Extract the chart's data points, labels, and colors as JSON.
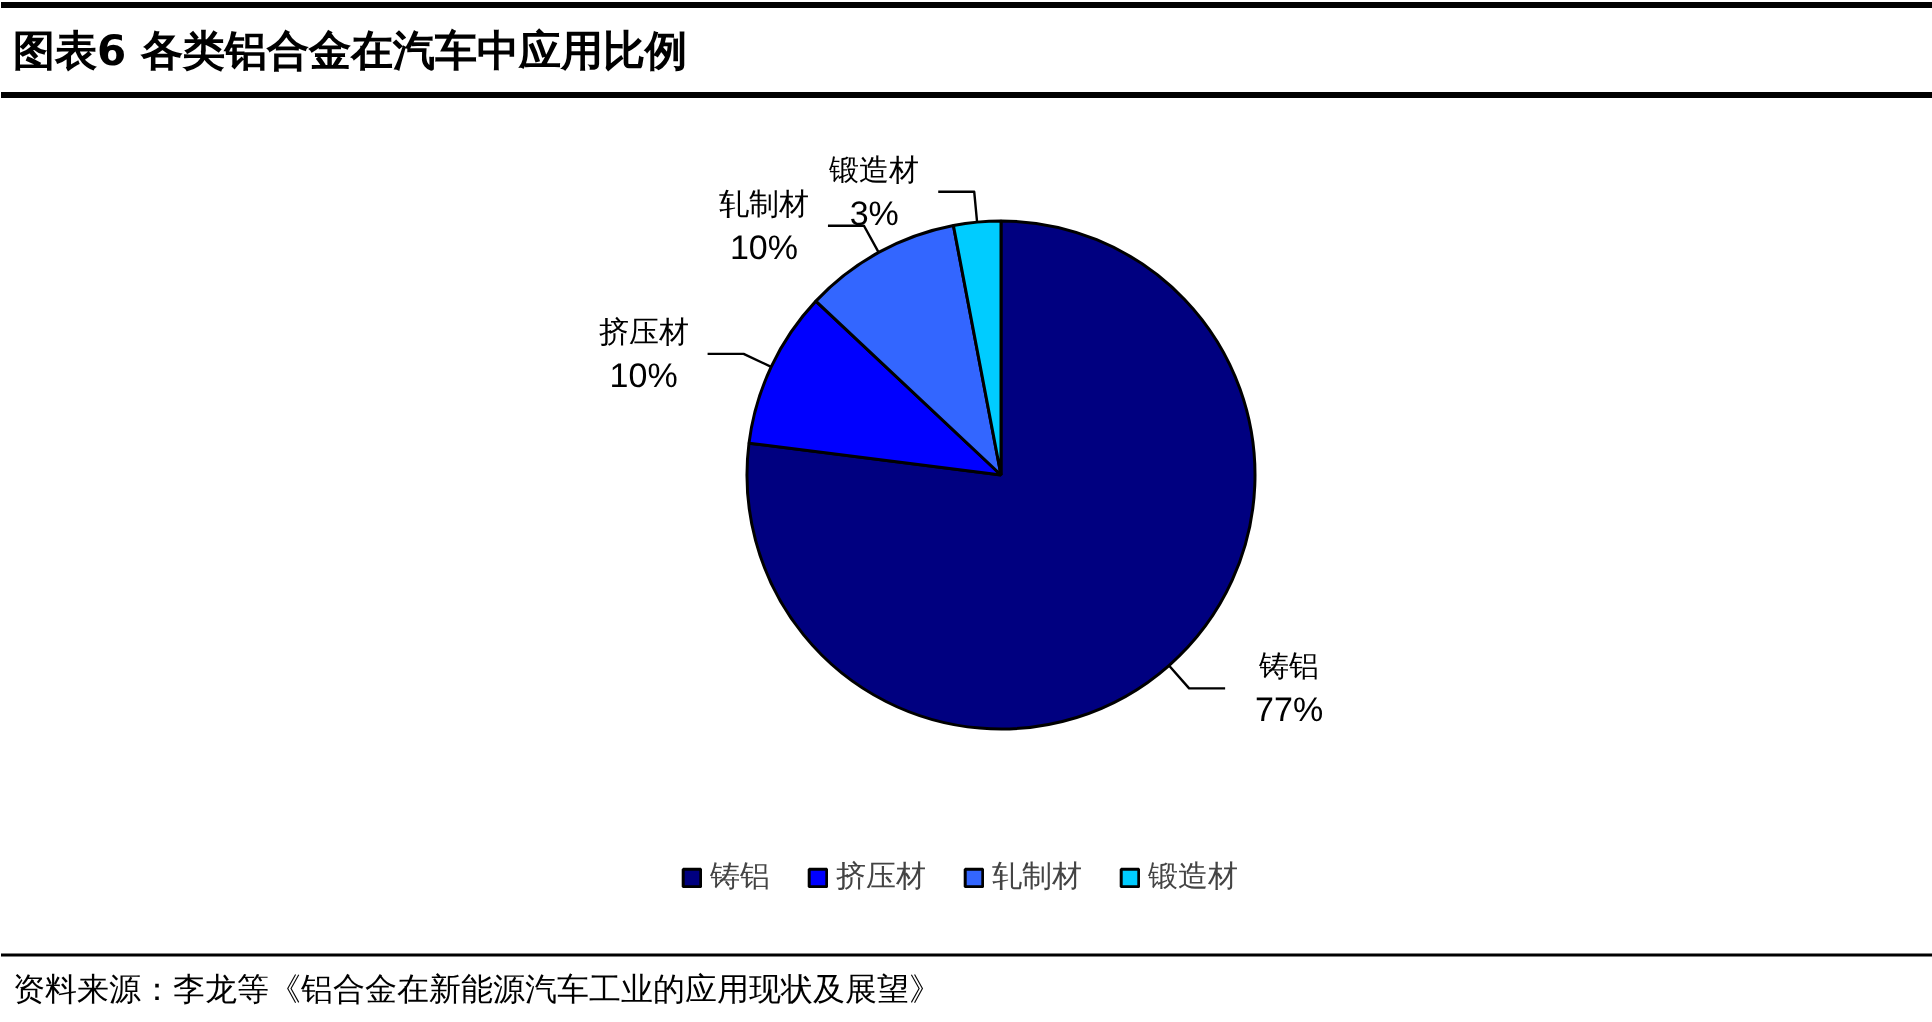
{
  "chart_data": {
    "type": "pie",
    "title": "图表6 各类铝合金在汽车中应用比例",
    "categories": [
      "铸铝",
      "挤压材",
      "轧制材",
      "锻造材"
    ],
    "values": [
      77,
      10,
      10,
      3
    ],
    "colors": [
      "#000080",
      "#0000ff",
      "#3366ff",
      "#00ccff"
    ],
    "value_labels": [
      "77%",
      "10%",
      "10%",
      "3%"
    ],
    "legend": "bottom",
    "annotations": [
      "资料来源：李龙等《铝合金在新能源汽车工业的应用现状及展望》"
    ]
  }
}
